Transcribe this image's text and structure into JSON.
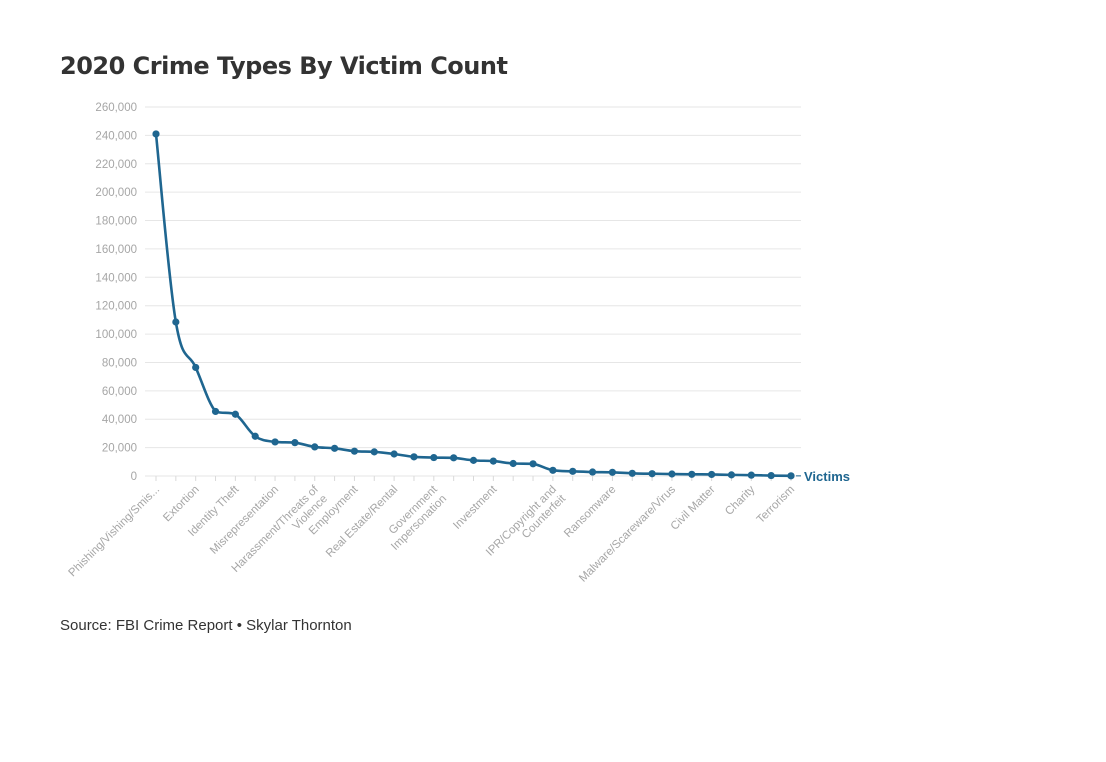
{
  "title": "2020 Crime Types By Victim Count",
  "source": "Source: FBI Crime Report • Skylar Thornton",
  "colors": {
    "series": "#1f6690",
    "grid": "#e6e6e6",
    "tick_text": "#a6a6a6",
    "title": "#333333"
  },
  "chart_data": {
    "type": "line",
    "title": "2020 Crime Types By Victim Count",
    "xlabel": "",
    "ylabel": "",
    "ylim": [
      0,
      260000
    ],
    "yticks": [
      0,
      20000,
      40000,
      60000,
      80000,
      100000,
      120000,
      140000,
      160000,
      180000,
      200000,
      220000,
      240000,
      260000
    ],
    "ytick_labels": [
      "0",
      "20,000",
      "40,000",
      "60,000",
      "80,000",
      "100,000",
      "120,000",
      "140,000",
      "160,000",
      "180,000",
      "200,000",
      "220,000",
      "240,000",
      "260,000"
    ],
    "grid": true,
    "legend": "none",
    "tick_labels": [
      {
        "index": 0,
        "lines": [
          "Phishing/Vishing/Smis..."
        ]
      },
      {
        "index": 2,
        "lines": [
          "Extortion"
        ]
      },
      {
        "index": 4,
        "lines": [
          "Identity Theft"
        ]
      },
      {
        "index": 6,
        "lines": [
          "Misrepresentation"
        ]
      },
      {
        "index": 8,
        "lines": [
          "Harassment/Threats of",
          "Violence"
        ]
      },
      {
        "index": 10,
        "lines": [
          "Employment"
        ]
      },
      {
        "index": 12,
        "lines": [
          "Real Estate/Rental"
        ]
      },
      {
        "index": 14,
        "lines": [
          "Government",
          "Impersonation"
        ]
      },
      {
        "index": 17,
        "lines": [
          "Investment"
        ]
      },
      {
        "index": 20,
        "lines": [
          "IPR/Copyright and",
          "Counterfeit"
        ]
      },
      {
        "index": 23,
        "lines": [
          "Ransomware"
        ]
      },
      {
        "index": 26,
        "lines": [
          "Malware/Scareware/Virus"
        ]
      },
      {
        "index": 28,
        "lines": [
          "Civil Matter"
        ]
      },
      {
        "index": 30,
        "lines": [
          "Charity"
        ]
      },
      {
        "index": 32,
        "lines": [
          "Terrorism"
        ]
      }
    ],
    "series": [
      {
        "name": "Victims",
        "values": [
          241000,
          108500,
          76500,
          45500,
          43500,
          28000,
          24000,
          23500,
          20500,
          19500,
          17500,
          17000,
          15500,
          13500,
          13000,
          12800,
          11000,
          10500,
          8800,
          8600,
          4000,
          3300,
          2800,
          2600,
          1900,
          1600,
          1400,
          1200,
          1100,
          800,
          600,
          300,
          100
        ]
      }
    ]
  }
}
